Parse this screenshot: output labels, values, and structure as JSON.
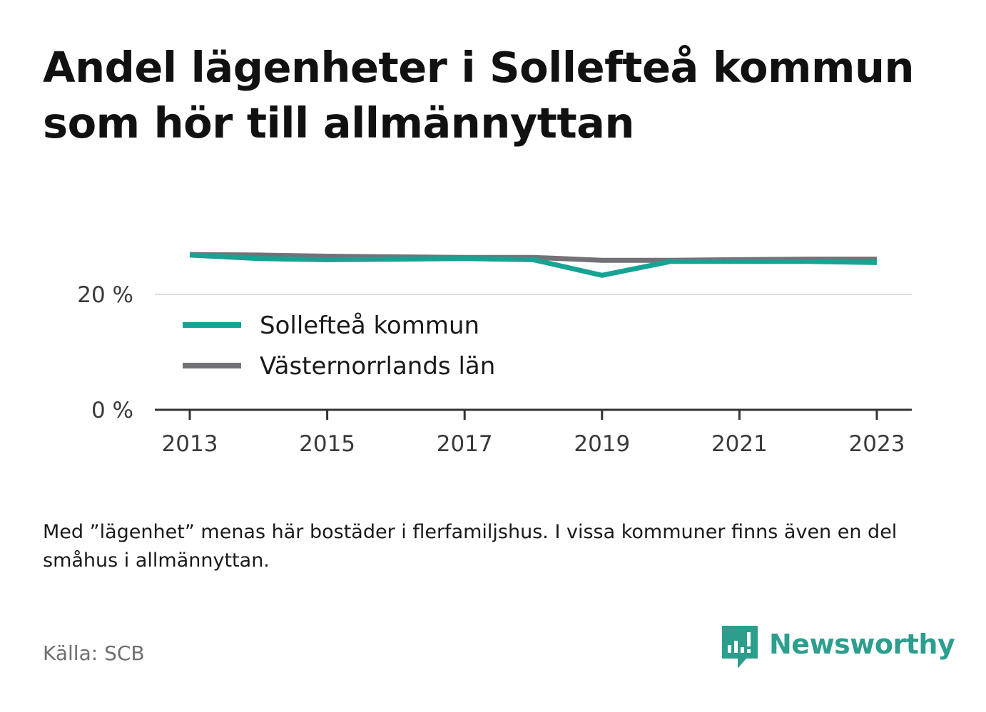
{
  "title": "Andel lägenheter i Sollefteå kommun som hör till allmännyttan",
  "note": "Med ”lägenhet” menas här bostäder i flerfamiljshus. I vissa kommuner finns även en del småhus i allmännyttan.",
  "source": "Källa: SCB",
  "brand": {
    "name": "Newsworthy",
    "icon": "newsworthy-logo-icon",
    "color": "#2d9e8d"
  },
  "chart_data": {
    "type": "line",
    "x": [
      2013,
      2014,
      2015,
      2016,
      2017,
      2018,
      2019,
      2020,
      2021,
      2022,
      2023
    ],
    "x_ticks": [
      2013,
      2015,
      2017,
      2019,
      2021,
      2023
    ],
    "y_ticks": [
      {
        "value": 0,
        "label": "0 %"
      },
      {
        "value": 20,
        "label": "20 %"
      }
    ],
    "ylim": [
      0,
      27.1
    ],
    "grid": true,
    "legend_position": "bottom-left inside plot",
    "series": [
      {
        "name": "Sollefteå kommun",
        "color": "#16a394",
        "values": [
          26.8,
          26.2,
          26.0,
          26.1,
          26.2,
          26.0,
          23.3,
          25.7,
          25.7,
          25.7,
          25.5
        ]
      },
      {
        "name": "Västernorrlands län",
        "color": "#737277",
        "values": [
          26.9,
          26.8,
          26.6,
          26.5,
          26.4,
          26.4,
          25.9,
          25.9,
          26.0,
          26.1,
          26.1
        ]
      }
    ]
  }
}
